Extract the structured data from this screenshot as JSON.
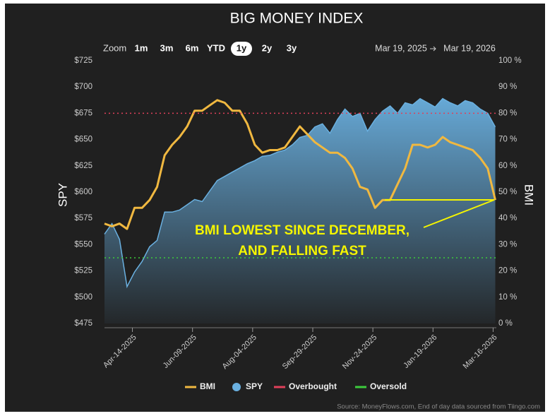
{
  "chart_data": {
    "type": "line",
    "title": "BIG MONEY INDEX",
    "zoom": {
      "label": "Zoom",
      "options": [
        "1m",
        "3m",
        "6m",
        "YTD",
        "1y",
        "2y",
        "3y"
      ],
      "selected_index": 4
    },
    "range_start": "Mar 19, 2025",
    "range_end": "Mar 19, 2026",
    "y_label": "SPY",
    "y2_label": "BMI",
    "x": [
      "2025-03-19",
      "2025-03-26",
      "2025-04-02",
      "2025-04-09",
      "2025-04-16",
      "2025-04-23",
      "2025-04-30",
      "2025-05-07",
      "2025-05-14",
      "2025-05-21",
      "2025-05-28",
      "2025-06-04",
      "2025-06-11",
      "2025-06-18",
      "2025-06-25",
      "2025-07-02",
      "2025-07-09",
      "2025-07-16",
      "2025-07-23",
      "2025-07-30",
      "2025-08-06",
      "2025-08-13",
      "2025-08-20",
      "2025-08-27",
      "2025-09-03",
      "2025-09-10",
      "2025-09-17",
      "2025-09-24",
      "2025-10-01",
      "2025-10-08",
      "2025-10-15",
      "2025-10-22",
      "2025-10-29",
      "2025-11-05",
      "2025-11-12",
      "2025-11-19",
      "2025-11-26",
      "2025-12-03",
      "2025-12-10",
      "2025-12-17",
      "2025-12-24",
      "2025-12-31",
      "2026-01-07",
      "2026-01-14",
      "2026-01-21",
      "2026-01-28",
      "2026-02-04",
      "2026-02-11",
      "2026-02-18",
      "2026-02-25",
      "2026-03-04",
      "2026-03-11",
      "2026-03-18"
    ],
    "series": [
      {
        "name": "BMI",
        "color": "#f0b840",
        "axis": "y2",
        "values": [
          38,
          37,
          38,
          36,
          44,
          44,
          47,
          52,
          64,
          68,
          71,
          75,
          81,
          81,
          83,
          85,
          84,
          81,
          81,
          76,
          68,
          65,
          66,
          66,
          67,
          71,
          75,
          72,
          69,
          67,
          65,
          65,
          63,
          59,
          52,
          51,
          44,
          47,
          47,
          53,
          59,
          68,
          68,
          67,
          68,
          71,
          69,
          68,
          67,
          66,
          63,
          59,
          47
        ]
      },
      {
        "name": "SPY",
        "color": "#6ab0e0",
        "axis": "y",
        "values": [
          560,
          570,
          555,
          510,
          524,
          534,
          548,
          554,
          581,
          581,
          583,
          588,
          593,
          591,
          601,
          611,
          615,
          619,
          623,
          627,
          630,
          634,
          635,
          638,
          640,
          645,
          652,
          654,
          662,
          665,
          656,
          669,
          679,
          672,
          675,
          658,
          669,
          677,
          682,
          675,
          685,
          683,
          689,
          685,
          681,
          689,
          685,
          682,
          687,
          685,
          679,
          675,
          662
        ]
      }
    ],
    "reference_lines": [
      {
        "name": "Overbought",
        "value": 80,
        "color": "#e0405a",
        "axis": "y2"
      },
      {
        "name": "Oversold",
        "value": 25,
        "color": "#3ccc3c",
        "axis": "y2"
      }
    ],
    "xlim": [
      "2025-03-19",
      "2026-03-19"
    ],
    "xticks": [
      {
        "value": "2025-04-14",
        "label": "Apr-14-2025"
      },
      {
        "value": "2025-06-09",
        "label": "Jun-09-2025"
      },
      {
        "value": "2025-08-04",
        "label": "Aug-04-2025"
      },
      {
        "value": "2025-09-29",
        "label": "Sep-29-2025"
      },
      {
        "value": "2025-11-24",
        "label": "Nov-24-2025"
      },
      {
        "value": "2026-01-19",
        "label": "Jan-19-2026"
      },
      {
        "value": "2026-03-16",
        "label": "Mar-16-2026"
      }
    ],
    "ylim": [
      475,
      725
    ],
    "yticks": [
      {
        "value": 475,
        "label": "$475"
      },
      {
        "value": 500,
        "label": "$500"
      },
      {
        "value": 525,
        "label": "$525"
      },
      {
        "value": 550,
        "label": "$550"
      },
      {
        "value": 575,
        "label": "$575"
      },
      {
        "value": 600,
        "label": "$600"
      },
      {
        "value": 625,
        "label": "$625"
      },
      {
        "value": 650,
        "label": "$650"
      },
      {
        "value": 675,
        "label": "$675"
      },
      {
        "value": 700,
        "label": "$700"
      },
      {
        "value": 725,
        "label": "$725"
      }
    ],
    "y2lim": [
      0,
      100
    ],
    "y2ticks": [
      {
        "value": 0,
        "label": "0 %"
      },
      {
        "value": 10,
        "label": "10 %"
      },
      {
        "value": 20,
        "label": "20 %"
      },
      {
        "value": 30,
        "label": "30 %"
      },
      {
        "value": 40,
        "label": "40 %"
      },
      {
        "value": 50,
        "label": "50 %"
      },
      {
        "value": 60,
        "label": "60 %"
      },
      {
        "value": 70,
        "label": "70 %"
      },
      {
        "value": 80,
        "label": "80 %"
      },
      {
        "value": 90,
        "label": "90 %"
      },
      {
        "value": 100,
        "label": "100 %"
      }
    ],
    "annotation": [
      "BMI LOWEST SINCE DECEMBER,",
      "AND FALLING FAST"
    ],
    "source": "Source: MoneyFlows.com, End of day data sourced from Tiingo.com"
  }
}
